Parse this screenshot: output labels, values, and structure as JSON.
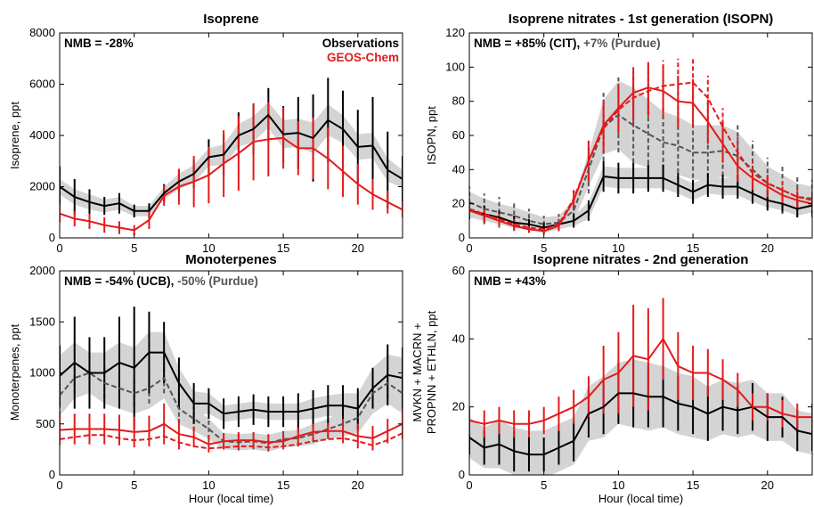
{
  "colors": {
    "obs": "#000000",
    "model": "#e41a1c",
    "alt": "#555555",
    "band": "#d4d4d4"
  },
  "chart_data": [
    {
      "type": "line",
      "title": "Isoprene",
      "ylabel": "Isoprene, ppt",
      "xlabel": "",
      "xlim": [
        0,
        23
      ],
      "ylim": [
        0,
        8000
      ],
      "xticks": [
        0,
        5,
        10,
        15,
        20
      ],
      "yticks": [
        0,
        2000,
        4000,
        6000,
        8000
      ],
      "annotation": [
        {
          "text": "NMB = -28%",
          "color": "#000000"
        }
      ],
      "legend": [
        {
          "text": "Observations",
          "color": "#000000"
        },
        {
          "text": "GEOS-Chem",
          "color": "#e41a1c"
        }
      ],
      "legend_position": "top-right",
      "x": [
        0,
        1,
        2,
        3,
        4,
        5,
        6,
        7,
        8,
        9,
        10,
        11,
        12,
        13,
        14,
        15,
        16,
        17,
        18,
        19,
        20,
        21,
        22,
        23
      ],
      "series": [
        {
          "name": "Observations",
          "color": "#000000",
          "width": 2,
          "dash": false,
          "values": [
            2000,
            1600,
            1400,
            1250,
            1350,
            1050,
            1050,
            1750,
            2200,
            2500,
            3150,
            3250,
            4000,
            4250,
            4800,
            4050,
            4100,
            3900,
            4600,
            4250,
            3550,
            3600,
            2650,
            2300
          ],
          "err": [
            800,
            700,
            500,
            350,
            400,
            250,
            300,
            350,
            450,
            550,
            700,
            800,
            900,
            1000,
            1050,
            1100,
            1400,
            1700,
            1650,
            1500,
            1450,
            1900,
            1500,
            900
          ],
          "band": [
            300,
            300,
            300,
            250,
            250,
            200,
            200,
            250,
            300,
            350,
            350,
            400,
            450,
            500,
            500,
            550,
            550,
            600,
            600,
            550,
            500,
            500,
            450,
            350
          ]
        },
        {
          "name": "GEOS-Chem",
          "color": "#e41a1c",
          "width": 2,
          "dash": false,
          "values": [
            950,
            750,
            650,
            500,
            400,
            300,
            700,
            1650,
            2000,
            2200,
            2450,
            2900,
            3300,
            3750,
            3850,
            3900,
            3500,
            3500,
            3100,
            2600,
            2100,
            1700,
            1400,
            1100
          ],
          "err": [
            350,
            300,
            300,
            300,
            250,
            200,
            350,
            400,
            700,
            1000,
            1100,
            1300,
            1450,
            1500,
            1450,
            1200,
            1050,
            1200,
            1200,
            1000,
            800,
            600,
            450,
            300
          ]
        }
      ]
    },
    {
      "type": "line",
      "title": "Isoprene nitrates - 1st generation (ISOPN)",
      "ylabel": "ISOPN, ppt",
      "xlabel": "",
      "xlim": [
        0,
        23
      ],
      "ylim": [
        0,
        120
      ],
      "xticks": [
        0,
        5,
        10,
        15,
        20
      ],
      "yticks": [
        0,
        20,
        40,
        60,
        80,
        100,
        120
      ],
      "annotation": [
        {
          "text": "NMB = +85% (CIT), ",
          "color": "#000000"
        },
        {
          "text": "+7% (Purdue)",
          "color": "#555555"
        }
      ],
      "x": [
        0,
        1,
        2,
        3,
        4,
        5,
        6,
        7,
        8,
        9,
        10,
        11,
        12,
        13,
        14,
        15,
        16,
        17,
        18,
        19,
        20,
        21,
        22,
        23
      ],
      "series": [
        {
          "name": "Purdue",
          "color": "#555555",
          "width": 2,
          "dash": true,
          "values": [
            21,
            17,
            15,
            13,
            10,
            8,
            9,
            16,
            40,
            65,
            72,
            66,
            61,
            56,
            54,
            50,
            50,
            51,
            48,
            40,
            32,
            28,
            24,
            23
          ],
          "err": [
            9,
            9,
            9,
            8,
            7,
            5,
            5,
            8,
            14,
            20,
            22,
            22,
            22,
            20,
            20,
            19,
            19,
            19,
            18,
            17,
            15,
            14,
            12,
            11
          ],
          "band": [
            6,
            6,
            5,
            5,
            5,
            4,
            4,
            6,
            10,
            16,
            20,
            22,
            20,
            18,
            17,
            16,
            16,
            15,
            14,
            12,
            10,
            9,
            8,
            7
          ]
        },
        {
          "name": "CIT",
          "color": "#000000",
          "width": 2,
          "dash": false,
          "values": [
            16,
            14,
            12,
            9,
            8,
            6,
            8,
            10,
            16,
            36,
            35,
            35,
            35,
            35,
            31,
            27,
            31,
            30,
            30,
            26,
            22,
            20,
            17,
            19
          ],
          "err": [
            5,
            5,
            4,
            4,
            3,
            3,
            3,
            4,
            6,
            9,
            9,
            9,
            8,
            8,
            7,
            7,
            7,
            7,
            7,
            6,
            6,
            5,
            5,
            5
          ],
          "band": [
            4,
            4,
            4,
            3,
            3,
            3,
            3,
            3,
            5,
            6,
            6,
            6,
            6,
            6,
            5,
            5,
            5,
            5,
            5,
            5,
            4,
            4,
            4,
            4
          ]
        },
        {
          "name": "GEOS-Chem",
          "color": "#e41a1c",
          "width": 2,
          "dash": false,
          "values": [
            16,
            13,
            10,
            7,
            5,
            4,
            7,
            22,
            45,
            66,
            76,
            85,
            88,
            86,
            80,
            79,
            68,
            55,
            42,
            35,
            30,
            25,
            22,
            20
          ],
          "err": [
            4,
            4,
            3,
            3,
            2,
            2,
            3,
            6,
            12,
            14,
            14,
            15,
            15,
            15,
            15,
            14,
            13,
            11,
            9,
            7,
            6,
            5,
            5,
            4
          ]
        },
        {
          "name": "GEOS-Chem dashed",
          "color": "#e41a1c",
          "width": 2,
          "dash": true,
          "values": [
            17,
            14,
            11,
            8,
            6,
            5,
            8,
            23,
            45,
            64,
            75,
            82,
            86,
            89,
            90,
            91,
            82,
            65,
            50,
            38,
            32,
            28,
            24,
            22
          ],
          "err": [
            4,
            4,
            3,
            3,
            2,
            2,
            3,
            6,
            12,
            14,
            14,
            15,
            15,
            15,
            15,
            14,
            13,
            11,
            9,
            7,
            6,
            5,
            5,
            4
          ]
        }
      ]
    },
    {
      "type": "line",
      "title": "Monoterpenes",
      "ylabel": "Monoterpenes, ppt",
      "xlabel": "Hour (local time)",
      "xlim": [
        0,
        23
      ],
      "ylim": [
        0,
        2000
      ],
      "xticks": [
        0,
        5,
        10,
        15,
        20
      ],
      "yticks": [
        0,
        500,
        1000,
        1500,
        2000
      ],
      "annotation": [
        {
          "text": "NMB = -54% (UCB), ",
          "color": "#000000"
        },
        {
          "text": "-50% (Purdue)",
          "color": "#555555"
        }
      ],
      "x": [
        0,
        1,
        2,
        3,
        4,
        5,
        6,
        7,
        8,
        9,
        10,
        11,
        12,
        13,
        14,
        15,
        16,
        17,
        18,
        19,
        20,
        21,
        22,
        23
      ],
      "series": [
        {
          "name": "Purdue",
          "color": "#555555",
          "width": 2,
          "dash": true,
          "values": [
            780,
            950,
            1000,
            900,
            850,
            800,
            850,
            950,
            650,
            550,
            450,
            330,
            320,
            330,
            310,
            350,
            360,
            400,
            450,
            500,
            560,
            800,
            900,
            800
          ],
          "err": [
            200,
            150,
            120,
            150,
            120,
            120,
            150,
            150,
            150,
            120,
            100,
            80,
            80,
            80,
            80,
            80,
            80,
            80,
            80,
            100,
            120,
            150,
            150,
            150
          ],
          "band": [
            200,
            200,
            200,
            200,
            200,
            200,
            200,
            200,
            150,
            120,
            100,
            80,
            80,
            80,
            80,
            80,
            80,
            100,
            100,
            120,
            150,
            200,
            200,
            200
          ]
        },
        {
          "name": "UCB",
          "color": "#000000",
          "width": 2,
          "dash": false,
          "values": [
            970,
            1100,
            1000,
            1000,
            1100,
            1050,
            1200,
            1200,
            900,
            700,
            700,
            600,
            620,
            640,
            620,
            620,
            620,
            650,
            680,
            680,
            650,
            850,
            980,
            950
          ],
          "err": [
            300,
            450,
            350,
            350,
            450,
            600,
            400,
            300,
            250,
            200,
            150,
            150,
            150,
            150,
            150,
            150,
            180,
            180,
            200,
            200,
            200,
            200,
            300,
            300
          ],
          "band": [
            200,
            200,
            200,
            200,
            200,
            200,
            200,
            200,
            150,
            120,
            100,
            80,
            80,
            80,
            80,
            80,
            80,
            100,
            100,
            120,
            150,
            200,
            200,
            200
          ]
        },
        {
          "name": "GEOS-Chem",
          "color": "#e41a1c",
          "width": 2,
          "dash": false,
          "values": [
            440,
            450,
            450,
            450,
            440,
            420,
            430,
            500,
            400,
            370,
            300,
            330,
            340,
            340,
            320,
            330,
            380,
            420,
            430,
            430,
            380,
            360,
            430,
            500
          ],
          "err": [
            150,
            150,
            150,
            150,
            150,
            150,
            150,
            200,
            150,
            100,
            80,
            80,
            80,
            80,
            80,
            80,
            80,
            80,
            80,
            120,
            120,
            120,
            120,
            150
          ]
        },
        {
          "name": "GEOS-Chem dashed",
          "color": "#e41a1c",
          "width": 2,
          "dash": true,
          "values": [
            350,
            370,
            390,
            390,
            360,
            340,
            350,
            380,
            320,
            280,
            260,
            270,
            280,
            280,
            270,
            280,
            300,
            330,
            350,
            360,
            330,
            290,
            340,
            410
          ],
          "err": [
            0,
            0,
            0,
            0,
            0,
            0,
            0,
            0,
            0,
            0,
            0,
            0,
            0,
            0,
            0,
            0,
            0,
            0,
            0,
            0,
            0,
            0,
            0,
            0
          ]
        }
      ]
    },
    {
      "type": "line",
      "title": "Isoprene nitrates - 2nd generation",
      "ylabel": [
        "MVKN + MACRN +",
        "PROPNN + ETHLN, ppt"
      ],
      "xlabel": "Hour (local time)",
      "xlim": [
        0,
        23
      ],
      "ylim": [
        0,
        60
      ],
      "xticks": [
        0,
        5,
        10,
        15,
        20
      ],
      "yticks": [
        0,
        20,
        40,
        60
      ],
      "annotation": [
        {
          "text": "NMB = +43%",
          "color": "#000000"
        }
      ],
      "x": [
        0,
        1,
        2,
        3,
        4,
        5,
        6,
        7,
        8,
        9,
        10,
        11,
        12,
        13,
        14,
        15,
        16,
        17,
        18,
        19,
        20,
        21,
        22,
        23
      ],
      "series": [
        {
          "name": "Observations",
          "color": "#000000",
          "width": 2,
          "dash": false,
          "values": [
            11,
            8,
            9,
            7,
            6,
            6,
            8,
            10,
            18,
            20,
            24,
            24,
            23,
            23,
            21,
            20,
            18,
            20,
            19,
            20,
            17,
            17,
            13,
            12
          ],
          "err": [
            5,
            5,
            6,
            6,
            5,
            5,
            5,
            6,
            7,
            8,
            9,
            10,
            9,
            9,
            8,
            8,
            8,
            7,
            7,
            7,
            7,
            6,
            6,
            5
          ],
          "band": [
            6,
            6,
            7,
            7,
            7,
            7,
            7,
            7,
            8,
            9,
            9,
            10,
            10,
            9,
            9,
            9,
            8,
            8,
            8,
            8,
            7,
            7,
            6,
            6
          ]
        },
        {
          "name": "GEOS-Chem",
          "color": "#e41a1c",
          "width": 2,
          "dash": false,
          "values": [
            16,
            15,
            16,
            15,
            15,
            16,
            18,
            20,
            23,
            28,
            30,
            35,
            34,
            40,
            32,
            30,
            30,
            28,
            25,
            20,
            20,
            18,
            17,
            17
          ],
          "err": [
            4,
            4,
            4,
            4,
            4,
            4,
            5,
            5,
            6,
            10,
            12,
            15,
            15,
            12,
            10,
            8,
            7,
            6,
            5,
            4,
            4,
            4,
            4,
            4
          ]
        }
      ]
    }
  ]
}
